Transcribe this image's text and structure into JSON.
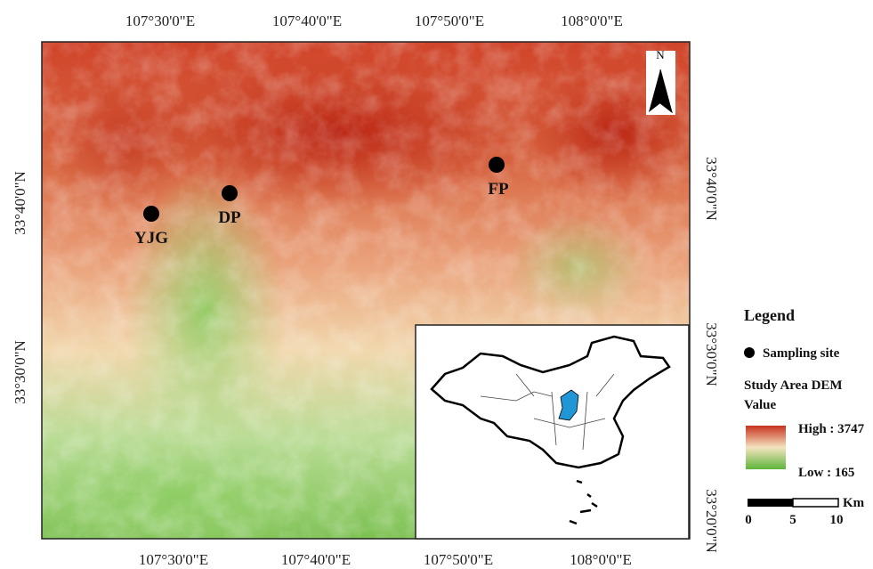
{
  "map": {
    "top_labels": [
      "107°30'0\"E",
      "107°40'0\"E",
      "107°50'0\"E",
      "108°0'0\"E"
    ],
    "bottom_labels": [
      "107°30'0\"E",
      "107°40'0\"E",
      "107°50'0\"E",
      "108°0'0\"E"
    ],
    "left_labels": [
      "33°40'0\"N",
      "33°30'0\"N"
    ],
    "right_labels": [
      "33°40'0\"N",
      "33°30'0\"N",
      "33°20'0\"N"
    ],
    "north": "N",
    "sites": [
      {
        "label": "YJG"
      },
      {
        "label": "DP"
      },
      {
        "label": "FP"
      }
    ]
  },
  "legend": {
    "title": "Legend",
    "site": "Sampling site",
    "dem_title": "Study Area DEM",
    "dem_sub": "Value",
    "high": "High : 3747",
    "low": "Low : 165",
    "scale_unit": "Km",
    "scale_ticks": [
      0,
      5,
      10
    ]
  }
}
